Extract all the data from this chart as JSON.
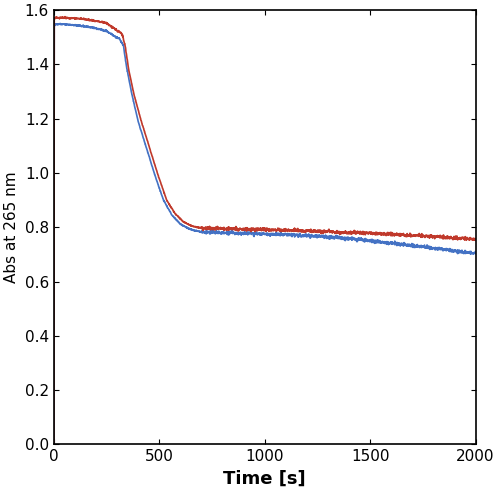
{
  "title": "",
  "xlabel": "Time [s]",
  "ylabel": "Abs at 265 nm",
  "xlim": [
    0,
    2000
  ],
  "ylim": [
    0.0,
    1.6
  ],
  "yticks": [
    0.0,
    0.2,
    0.4,
    0.6,
    0.8,
    1.0,
    1.2,
    1.4,
    1.6
  ],
  "xticks": [
    0,
    500,
    1000,
    1500,
    2000
  ],
  "blue_color": "#4472c4",
  "red_color": "#c0392b",
  "line_width": 1.2,
  "background_color": "#ffffff",
  "tick_labelsize": 11,
  "xlabel_fontsize": 13,
  "ylabel_fontsize": 11,
  "blue_keypoints": [
    [
      0,
      0.0
    ],
    [
      2,
      1.545
    ],
    [
      10,
      1.548
    ],
    [
      50,
      1.548
    ],
    [
      100,
      1.545
    ],
    [
      150,
      1.54
    ],
    [
      200,
      1.533
    ],
    [
      250,
      1.523
    ],
    [
      290,
      1.503
    ],
    [
      310,
      1.495
    ],
    [
      330,
      1.47
    ],
    [
      345,
      1.39
    ],
    [
      370,
      1.29
    ],
    [
      400,
      1.19
    ],
    [
      440,
      1.09
    ],
    [
      480,
      0.99
    ],
    [
      520,
      0.9
    ],
    [
      560,
      0.845
    ],
    [
      600,
      0.812
    ],
    [
      640,
      0.795
    ],
    [
      660,
      0.79
    ],
    [
      680,
      0.786
    ],
    [
      700,
      0.783
    ],
    [
      750,
      0.782
    ],
    [
      800,
      0.78
    ],
    [
      850,
      0.779
    ],
    [
      900,
      0.778
    ],
    [
      950,
      0.777
    ],
    [
      1000,
      0.775
    ],
    [
      1050,
      0.774
    ],
    [
      1100,
      0.773
    ],
    [
      1150,
      0.771
    ],
    [
      1200,
      0.769
    ],
    [
      1300,
      0.765
    ],
    [
      1400,
      0.758
    ],
    [
      1500,
      0.751
    ],
    [
      1600,
      0.742
    ],
    [
      1700,
      0.733
    ],
    [
      1800,
      0.724
    ],
    [
      1900,
      0.714
    ],
    [
      2000,
      0.704
    ]
  ],
  "red_keypoints": [
    [
      0,
      0.0
    ],
    [
      2,
      1.57
    ],
    [
      10,
      1.572
    ],
    [
      50,
      1.572
    ],
    [
      100,
      1.57
    ],
    [
      150,
      1.566
    ],
    [
      200,
      1.56
    ],
    [
      250,
      1.553
    ],
    [
      290,
      1.53
    ],
    [
      310,
      1.52
    ],
    [
      325,
      1.51
    ],
    [
      340,
      1.46
    ],
    [
      355,
      1.38
    ],
    [
      380,
      1.29
    ],
    [
      415,
      1.19
    ],
    [
      455,
      1.09
    ],
    [
      495,
      0.99
    ],
    [
      535,
      0.9
    ],
    [
      575,
      0.85
    ],
    [
      615,
      0.82
    ],
    [
      650,
      0.806
    ],
    [
      680,
      0.8
    ],
    [
      710,
      0.797
    ],
    [
      750,
      0.796
    ],
    [
      800,
      0.795
    ],
    [
      850,
      0.794
    ],
    [
      900,
      0.793
    ],
    [
      950,
      0.792
    ],
    [
      1000,
      0.791
    ],
    [
      1100,
      0.789
    ],
    [
      1200,
      0.787
    ],
    [
      1300,
      0.784
    ],
    [
      1400,
      0.781
    ],
    [
      1500,
      0.778
    ],
    [
      1600,
      0.774
    ],
    [
      1700,
      0.77
    ],
    [
      1800,
      0.766
    ],
    [
      1900,
      0.761
    ],
    [
      2000,
      0.756
    ]
  ]
}
